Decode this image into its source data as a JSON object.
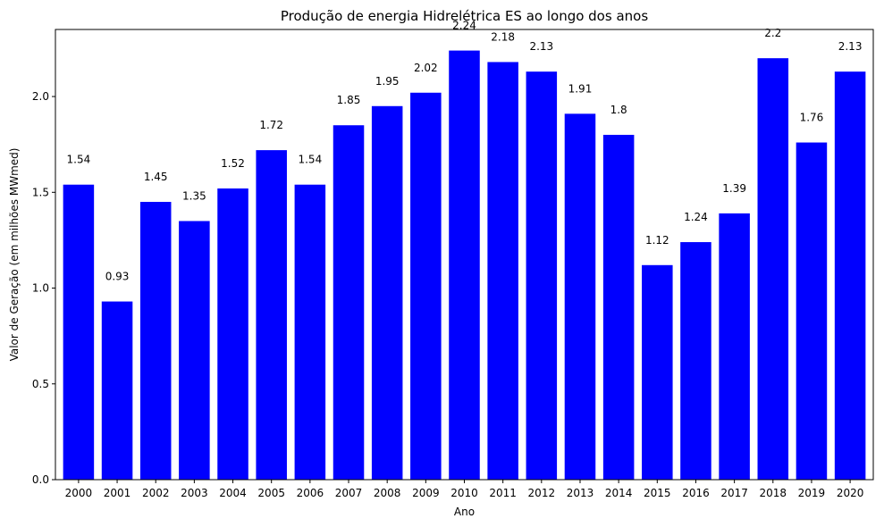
{
  "chart_data": {
    "type": "bar",
    "title": "Produção de energia Hidrelétrica ES ao longo dos anos",
    "xlabel": "Ano",
    "ylabel": "Valor de Geração (em milhões MWmed)",
    "categories": [
      "2000",
      "2001",
      "2002",
      "2003",
      "2004",
      "2005",
      "2006",
      "2007",
      "2008",
      "2009",
      "2010",
      "2011",
      "2012",
      "2013",
      "2014",
      "2015",
      "2016",
      "2017",
      "2018",
      "2019",
      "2020"
    ],
    "values": [
      1.54,
      0.93,
      1.45,
      1.35,
      1.52,
      1.72,
      1.54,
      1.85,
      1.95,
      2.02,
      2.24,
      2.18,
      2.13,
      1.91,
      1.8,
      1.12,
      1.24,
      1.39,
      2.2,
      1.76,
      2.13
    ],
    "data_labels": [
      "1.54",
      "0.93",
      "1.45",
      "1.35",
      "1.52",
      "1.72",
      "1.54",
      "1.85",
      "1.95",
      "2.02",
      "2.24",
      "2.18",
      "2.13",
      "1.91",
      "1.8",
      "1.12",
      "1.24",
      "1.39",
      "2.2",
      "1.76",
      "2.13"
    ],
    "ylim": [
      0,
      2.35
    ],
    "yticks": [
      0.0,
      0.5,
      1.0,
      1.5,
      2.0
    ],
    "ytick_labels": [
      "0.0",
      "0.5",
      "1.0",
      "1.5",
      "2.0"
    ],
    "bar_color": "#0000ff",
    "grid": false,
    "legend": "none"
  }
}
